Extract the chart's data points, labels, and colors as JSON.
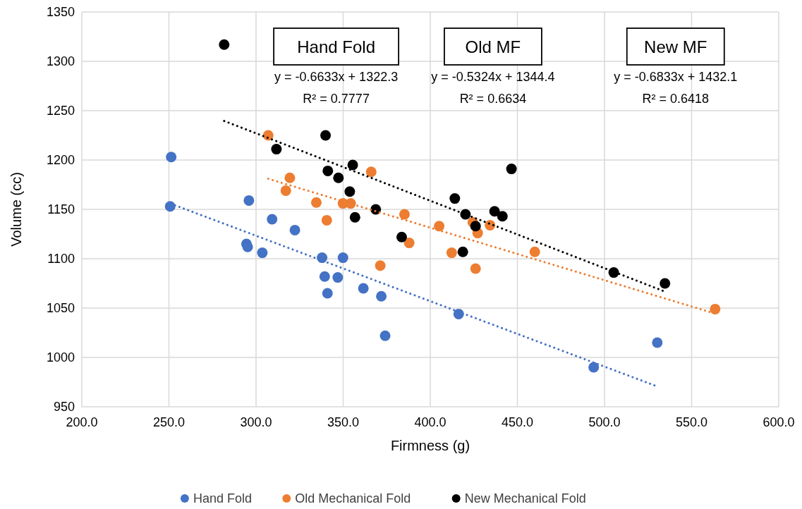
{
  "chart_data": {
    "type": "scatter",
    "xlabel": "Firmness (g)",
    "ylabel": "Volume (cc)",
    "xlim": [
      200,
      600
    ],
    "xticks": [
      {
        "value": 200,
        "label": "200.0"
      },
      {
        "value": 250,
        "label": "250.0"
      },
      {
        "value": 300,
        "label": "300.0"
      },
      {
        "value": 350,
        "label": "350.0"
      },
      {
        "value": 400,
        "label": "400.0"
      },
      {
        "value": 450,
        "label": "450.0"
      },
      {
        "value": 500,
        "label": "500.0"
      },
      {
        "value": 550,
        "label": "550.0"
      },
      {
        "value": 600,
        "label": "600.0"
      }
    ],
    "ylim": [
      950,
      1350
    ],
    "yticks": [
      950,
      1000,
      1050,
      1100,
      1150,
      1200,
      1250,
      1300,
      1350
    ],
    "grid": true,
    "legend": "bottom",
    "marker": "circle",
    "series": [
      {
        "name": "Hand Fold",
        "color": "#4472c4",
        "x": [
          251.3,
          250.7,
          295.9,
          309.2,
          322.3,
          294.5,
          295.2,
          303.6,
          337.9,
          349.9,
          339.4,
          346.9,
          341.0,
          361.6,
          371.9,
          374.1,
          416.3,
          493.8,
          530.3
        ],
        "values": [
          1203,
          1153,
          1159,
          1140,
          1129,
          1115,
          1112,
          1106,
          1101,
          1101,
          1082,
          1081,
          1065,
          1070,
          1062,
          1022,
          1044,
          990,
          1015
        ]
      },
      {
        "name": "Old Mechanical Fold",
        "color": "#ed7d31",
        "x": [
          307.0,
          319.4,
          317.1,
          334.6,
          349.9,
          354.3,
          340.6,
          366.1,
          385.2,
          405.1,
          424.4,
          427.2,
          434.3,
          387.9,
          412.3,
          460.0,
          371.3,
          426.0,
          563.5
        ],
        "values": [
          1225,
          1182,
          1169,
          1157,
          1156,
          1156,
          1139,
          1188,
          1145,
          1133,
          1137,
          1126,
          1134,
          1116,
          1106,
          1107,
          1093,
          1090,
          1049
        ]
      },
      {
        "name": "New Mechanical Fold",
        "color": "#000000",
        "x": [
          281.7,
          311.7,
          339.9,
          355.5,
          341.2,
          347.3,
          353.8,
          356.8,
          446.6,
          414.1,
          368.7,
          420.2,
          436.9,
          441.4,
          426.0,
          383.6,
          418.7,
          505.3,
          534.7
        ],
        "values": [
          1317,
          1211,
          1225,
          1195,
          1189,
          1182,
          1168,
          1142,
          1191,
          1161,
          1150,
          1145,
          1148,
          1143,
          1133,
          1122,
          1107,
          1086,
          1075
        ]
      },
      {
        "type": "line",
        "marker": "none",
        "line_style": "dotted",
        "color": "#4472c4",
        "x": [
          251,
          530
        ],
        "values": [
          1155.8,
          970.8
        ]
      },
      {
        "type": "line",
        "marker": "none",
        "line_style": "dotted",
        "color": "#ed7d31",
        "x": [
          307,
          563.5
        ],
        "values": [
          1181.0,
          1044.4
        ]
      },
      {
        "type": "line",
        "marker": "none",
        "line_style": "dotted",
        "color": "#000000",
        "x": [
          281.7,
          534.7
        ],
        "values": [
          1239.6,
          1066.7
        ]
      }
    ],
    "annotations": [
      "Hand Fold",
      "y = -0.6633x + 1322.3",
      "R² = 0.7777",
      "Old MF",
      "y = -0.5324x + 1344.4",
      "R² = 0.6634",
      "New MF",
      "y = -0.6833x + 1432.1",
      "R² = 0.6418"
    ]
  }
}
